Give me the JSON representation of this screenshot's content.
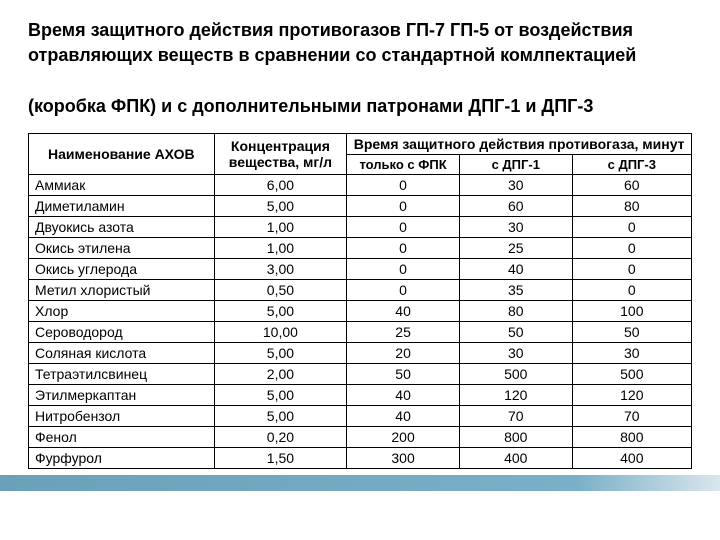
{
  "title_line1": "Время защитного действия противогазов ГП-7 ГП-5 от воздействия отравляющих веществ в сравнении со стандартной комлпектацией",
  "title_line2": "(коробка ФПК) и с дополнительными патронами ДПГ-1 и ДПГ-3",
  "columns": {
    "name": "Наименование АХОВ",
    "conc": "Концентрация вещества, мг/л",
    "time_group": "Время защитного действия противогаза, минут",
    "sub1": "только с ФПК",
    "sub2": "с ДПГ-1",
    "sub3": "с ДПГ-3"
  },
  "rows": [
    {
      "name": "Аммиак",
      "conc": "6,00",
      "v1": "0",
      "v2": "30",
      "v3": "60"
    },
    {
      "name": "Диметиламин",
      "conc": "5,00",
      "v1": "0",
      "v2": "60",
      "v3": "80"
    },
    {
      "name": "Двуокись азота",
      "conc": "1,00",
      "v1": "0",
      "v2": "30",
      "v3": "0"
    },
    {
      "name": "Окись этилена",
      "conc": "1,00",
      "v1": "0",
      "v2": "25",
      "v3": "0"
    },
    {
      "name": "Окись углерода",
      "conc": "3,00",
      "v1": "0",
      "v2": "40",
      "v3": "0"
    },
    {
      "name": "Метил хлористый",
      "conc": "0,50",
      "v1": "0",
      "v2": "35",
      "v3": "0"
    },
    {
      "name": "Хлор",
      "conc": "5,00",
      "v1": "40",
      "v2": "80",
      "v3": "100"
    },
    {
      "name": "Сероводород",
      "conc": "10,00",
      "v1": "25",
      "v2": "50",
      "v3": "50"
    },
    {
      "name": "Соляная кислота",
      "conc": "5,00",
      "v1": "20",
      "v2": "30",
      "v3": "30"
    },
    {
      "name": "Тетраэтилсвинец",
      "conc": "2,00",
      "v1": "50",
      "v2": "500",
      "v3": "500"
    },
    {
      "name": "Этилмеркаптан",
      "conc": "5,00",
      "v1": "40",
      "v2": "120",
      "v3": "120"
    },
    {
      "name": "Нитробензол",
      "conc": "5,00",
      "v1": "40",
      "v2": "70",
      "v3": "70"
    },
    {
      "name": "Фенол",
      "conc": "0,20",
      "v1": "200",
      "v2": "800",
      "v3": "800"
    },
    {
      "name": "Фурфурол",
      "conc": "1,50",
      "v1": "300",
      "v2": "400",
      "v3": "400"
    }
  ],
  "style": {
    "border_color": "#000000",
    "background_color": "#ffffff",
    "footer_bar_color": "#6aa1b8",
    "font_family": "Arial",
    "title_fontsize": 18,
    "table_fontsize": 14,
    "col_widths_pct": [
      28,
      20,
      17,
      17,
      18
    ]
  }
}
